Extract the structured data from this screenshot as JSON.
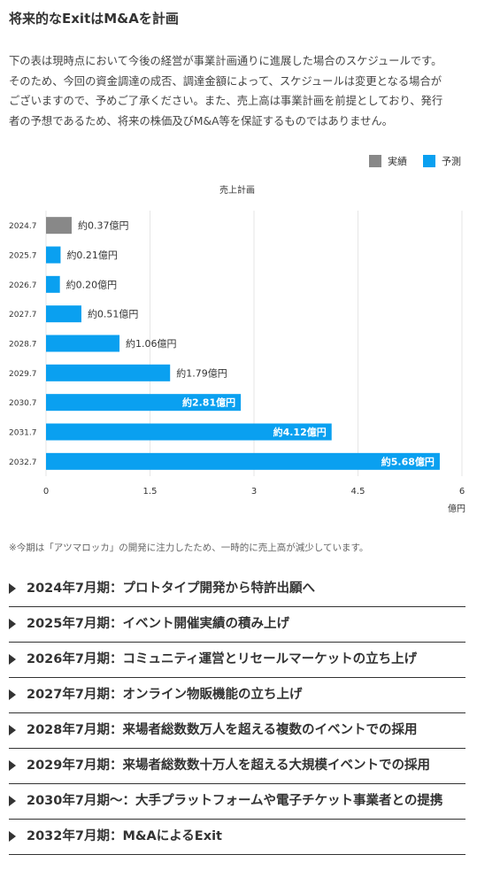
{
  "page": {
    "title": "将来的なExitはM&Aを計画",
    "description_lines": [
      "下の表は現時点において今後の経営が事業計画通りに進展した場合のスケジュールです。",
      "そのため、今回の資金調達の成否、調達金額によって、スケジュールは変更となる場合が",
      "ございますので、予めご了承ください。また、売上高は事業計画を前提としており、発行",
      "者の予想であるため、将来の株価及びM&A等を保証するものではありません。"
    ],
    "note": "※今期は「アツマロッカ」の開発に注力したため、一時的に売上高が減少しています。"
  },
  "colors": {
    "actual": "#888888",
    "forecast": "#0aa0f0",
    "grid": "#e6e6e6",
    "text": "#333333"
  },
  "chart_data": {
    "type": "bar",
    "orientation": "horizontal",
    "title": "売上計画",
    "unit_label": "億円",
    "legend": [
      {
        "name": "実績",
        "color": "#888888"
      },
      {
        "name": "予測",
        "color": "#0aa0f0"
      }
    ],
    "legend_position": "top-right",
    "categories": [
      "2024.7",
      "2025.7",
      "2026.7",
      "2027.7",
      "2028.7",
      "2029.7",
      "2030.7",
      "2031.7",
      "2032.7"
    ],
    "values": [
      0.37,
      0.21,
      0.2,
      0.51,
      1.06,
      1.79,
      2.81,
      4.12,
      5.68
    ],
    "kinds": [
      "実績",
      "予測",
      "予測",
      "予測",
      "予測",
      "予測",
      "予測",
      "予測",
      "予測"
    ],
    "data_labels": [
      "約0.37億円",
      "約0.21億円",
      "約0.20億円",
      "約0.51億円",
      "約1.06億円",
      "約1.79億円",
      "約2.81億円",
      "約4.12億円",
      "約5.68億円"
    ],
    "xlim": [
      0,
      6
    ],
    "xticks": [
      0,
      1.5,
      3,
      4.5,
      6
    ],
    "xtick_labels": [
      "0",
      "1.5",
      "3",
      "4.5",
      "6"
    ],
    "grid": true
  },
  "milestones": [
    {
      "icon": "triangle-right-icon",
      "text": "2024年7月期：プロトタイプ開発から特許出願へ"
    },
    {
      "icon": "triangle-right-icon",
      "text": "2025年7月期：イベント開催実績の積み上げ"
    },
    {
      "icon": "triangle-right-icon",
      "text": "2026年7月期：コミュニティ運営とリセールマーケットの立ち上げ"
    },
    {
      "icon": "triangle-right-icon",
      "text": "2027年7月期：オンライン物販機能の立ち上げ"
    },
    {
      "icon": "triangle-right-icon",
      "text": "2028年7月期：来場者総数数万人を超える複数のイベントでの採用"
    },
    {
      "icon": "triangle-right-icon",
      "text": "2029年7月期：来場者総数数十万人を超える大規模イベントでの採用"
    },
    {
      "icon": "triangle-right-icon",
      "text": "2030年7月期〜：大手プラットフォームや電子チケット事業者との提携"
    },
    {
      "icon": "triangle-right-icon",
      "text": "2032年7月期：M&AによるExit"
    }
  ]
}
